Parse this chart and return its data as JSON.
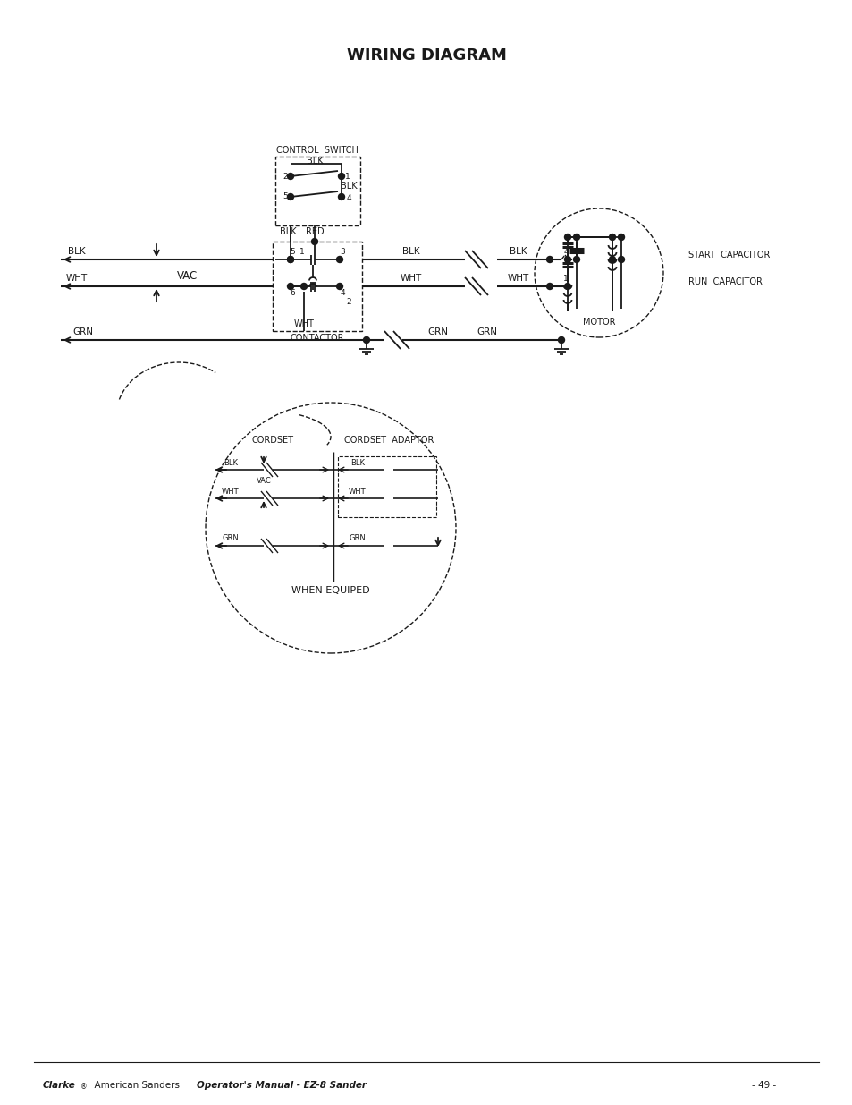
{
  "title": "WIRING DIAGRAM",
  "bg_color": "#ffffff",
  "text_color": "#1a1a1a",
  "line_color": "#1a1a1a",
  "title_fontsize": 13,
  "label_fontsize": 7.5,
  "footer_text": "Clarke  American Sanders  Operator's Manual - EZ-8 Sander",
  "footer_right": "- 49 -"
}
